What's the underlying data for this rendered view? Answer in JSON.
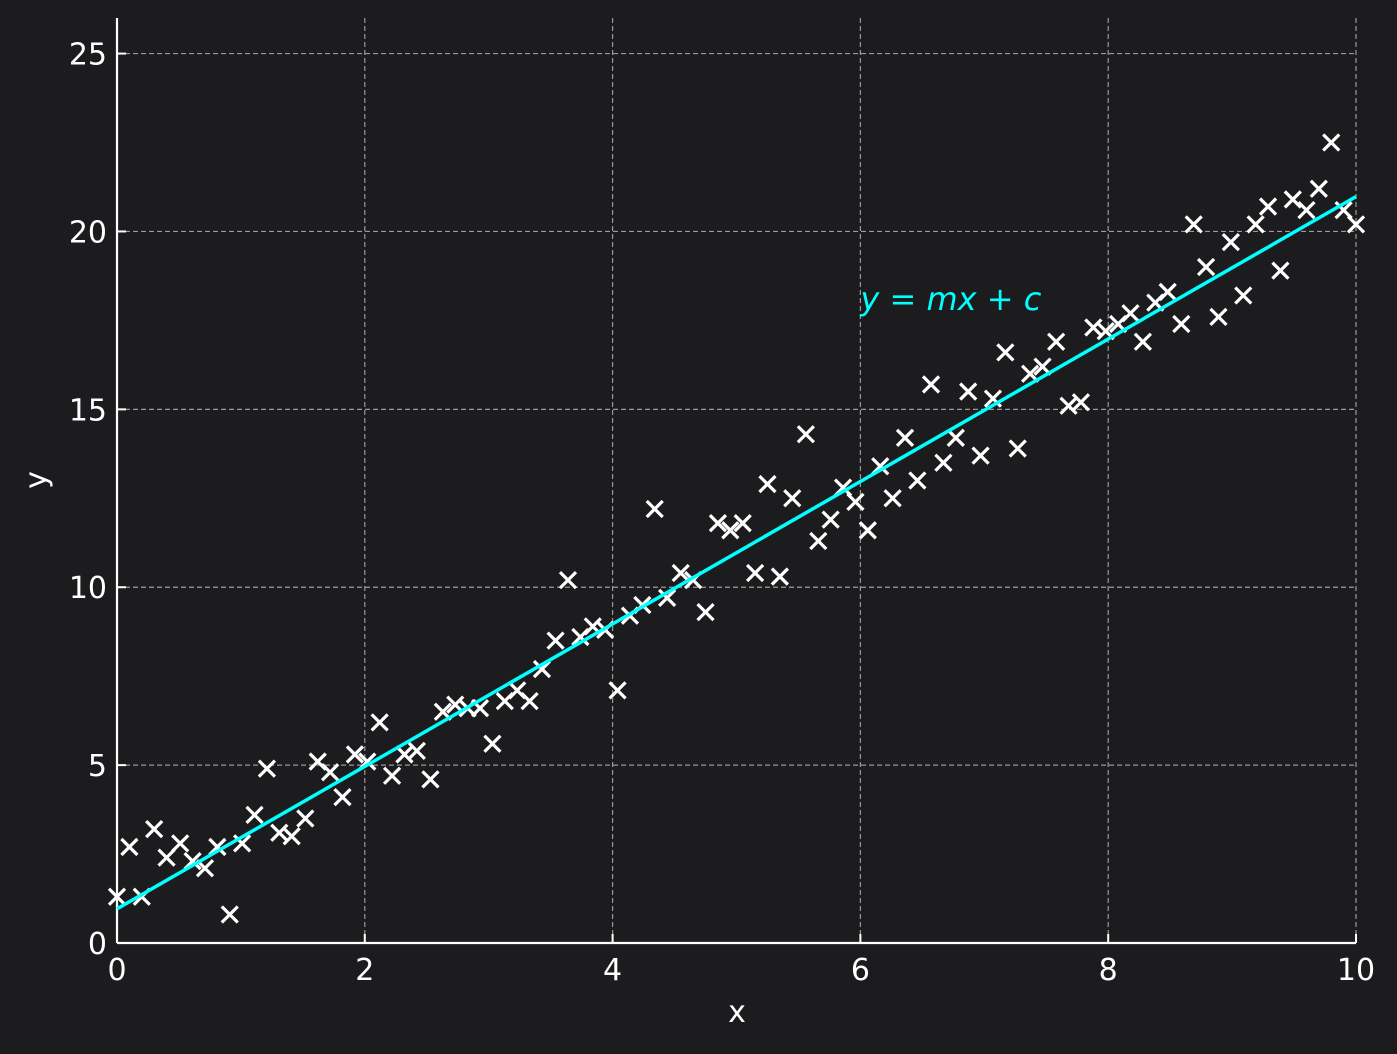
{
  "chart_data": {
    "type": "scatter",
    "title": "",
    "xlabel": "x",
    "ylabel": "y",
    "xlim": [
      0,
      10
    ],
    "ylim": [
      0,
      26
    ],
    "x_ticks": [
      "0",
      "2",
      "4",
      "6",
      "8",
      "10"
    ],
    "y_ticks": [
      "0",
      "5",
      "10",
      "15",
      "20",
      "25"
    ],
    "grid": true,
    "annotation": {
      "text": "y = mx + c",
      "x": 6.0,
      "y": 18.1
    },
    "colors": {
      "background": "#1c1c1e",
      "points": "#ffffff",
      "fit_line": "#00ffff",
      "grid": "#9a9a9a",
      "axes": "#ffffff"
    },
    "series": [
      {
        "kind": "scatter",
        "marker": "x",
        "x": [
          0.0,
          0.1,
          0.2,
          0.3,
          0.4,
          0.51,
          0.61,
          0.71,
          0.81,
          0.91,
          1.01,
          1.11,
          1.21,
          1.31,
          1.41,
          1.52,
          1.62,
          1.72,
          1.82,
          1.92,
          2.02,
          2.12,
          2.22,
          2.32,
          2.42,
          2.53,
          2.63,
          2.73,
          2.83,
          2.93,
          3.03,
          3.13,
          3.23,
          3.33,
          3.43,
          3.54,
          3.64,
          3.74,
          3.84,
          3.94,
          4.04,
          4.14,
          4.24,
          4.34,
          4.44,
          4.55,
          4.65,
          4.75,
          4.85,
          4.95,
          5.05,
          5.15,
          5.25,
          5.35,
          5.45,
          5.56,
          5.66,
          5.76,
          5.86,
          5.96,
          6.06,
          6.16,
          6.26,
          6.36,
          6.46,
          6.57,
          6.67,
          6.77,
          6.87,
          6.97,
          7.07,
          7.17,
          7.27,
          7.37,
          7.47,
          7.58,
          7.68,
          7.78,
          7.88,
          7.98,
          8.08,
          8.18,
          8.28,
          8.38,
          8.48,
          8.59,
          8.69,
          8.79,
          8.89,
          8.99,
          9.09,
          9.19,
          9.29,
          9.39,
          9.49,
          9.6,
          9.7,
          9.8,
          9.9,
          10.0
        ],
        "y": [
          1.3,
          2.7,
          1.3,
          3.2,
          2.4,
          2.8,
          2.3,
          2.1,
          2.7,
          0.8,
          2.8,
          3.6,
          4.9,
          3.1,
          3.0,
          3.5,
          5.1,
          4.8,
          4.1,
          5.3,
          5.1,
          6.2,
          4.7,
          5.3,
          5.4,
          4.6,
          6.5,
          6.7,
          6.6,
          6.6,
          5.6,
          6.8,
          7.1,
          6.8,
          7.7,
          8.5,
          10.2,
          8.6,
          8.9,
          8.8,
          7.1,
          9.2,
          9.5,
          12.2,
          9.7,
          10.4,
          10.2,
          9.3,
          11.8,
          11.6,
          11.8,
          10.4,
          12.9,
          10.3,
          12.5,
          14.3,
          11.3,
          11.9,
          12.8,
          12.4,
          11.6,
          13.4,
          12.5,
          14.2,
          13.0,
          15.7,
          13.5,
          14.2,
          15.5,
          13.7,
          15.3,
          16.6,
          13.9,
          16.0,
          16.2,
          16.9,
          15.1,
          15.2,
          17.3,
          17.2,
          17.4,
          17.7,
          16.9,
          18.0,
          18.3,
          17.4,
          20.2,
          19.0,
          17.6,
          19.7,
          18.2,
          20.2,
          20.7,
          18.9,
          20.9,
          20.6,
          21.2,
          22.5,
          20.6,
          20.2
        ]
      },
      {
        "kind": "line",
        "x": [
          0,
          10
        ],
        "y": [
          0.96,
          20.98
        ]
      }
    ]
  }
}
